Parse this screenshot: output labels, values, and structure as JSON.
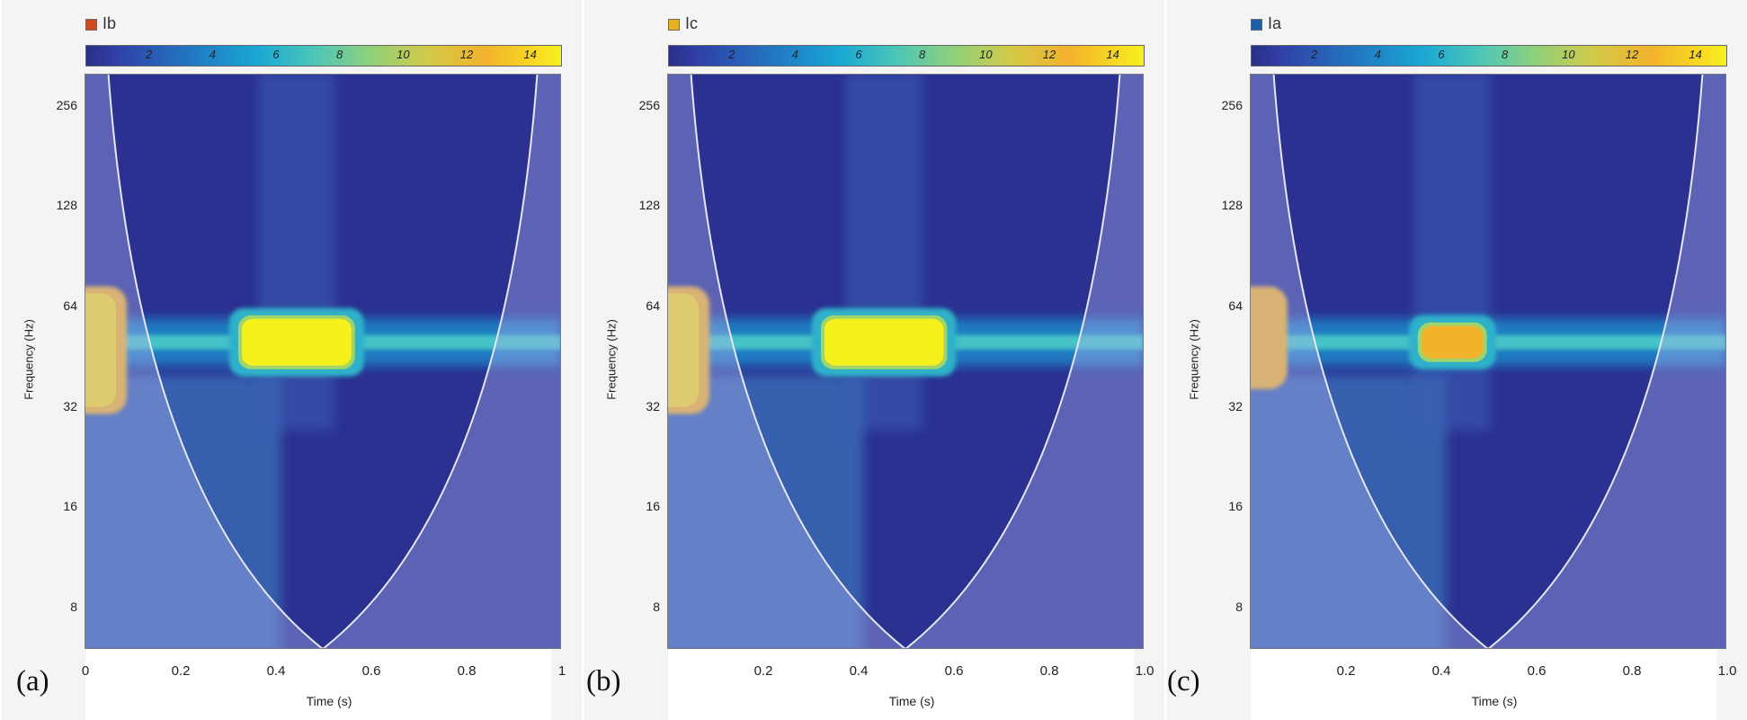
{
  "chart_data": [
    {
      "type": "heatmap",
      "panel_letter": "(a)",
      "legend": {
        "label": "Ib",
        "color": "#cc4a22"
      },
      "colorbar": {
        "range": [
          0,
          15
        ],
        "ticks": [
          "2",
          "4",
          "6",
          "8",
          "10",
          "12",
          "14"
        ]
      },
      "ylabel": "Frequency (Hz)",
      "yticks": [
        "256",
        "128",
        "64",
        "32",
        "16",
        "8"
      ],
      "xlabel": "Time (s)",
      "xticks": [
        "0",
        "0.2",
        "0.4",
        "0.6",
        "0.8",
        "1"
      ],
      "xlim": [
        0,
        1
      ],
      "ylim_hz": [
        6,
        320
      ],
      "dominant_band_hz": 50,
      "hotspot": {
        "t_start": 0.33,
        "t_end": 0.56,
        "peak_magnitude": 15
      },
      "edge_hotspot": {
        "t_end": 0.07,
        "f_low_hz": 32,
        "f_high_hz": 70,
        "magnitude": 12
      },
      "cone_of_influence": "parabolic, vertex at t=0.5"
    },
    {
      "type": "heatmap",
      "panel_letter": "(b)",
      "legend": {
        "label": "Ic",
        "color": "#e8b21e"
      },
      "colorbar": {
        "range": [
          0,
          15
        ],
        "ticks": [
          "2",
          "4",
          "6",
          "8",
          "10",
          "12",
          "14"
        ]
      },
      "ylabel": "Frequency (Hz)",
      "yticks": [
        "256",
        "128",
        "64",
        "32",
        "16",
        "8"
      ],
      "xlabel": "Time (s)",
      "xticks": [
        "0.2",
        "0.4",
        "0.6",
        "0.8",
        "1.0"
      ],
      "xlim": [
        0,
        1
      ],
      "ylim_hz": [
        6,
        320
      ],
      "dominant_band_hz": 50,
      "hotspot": {
        "t_start": 0.33,
        "t_end": 0.58,
        "peak_magnitude": 15
      },
      "edge_hotspot": {
        "t_end": 0.07,
        "f_low_hz": 32,
        "f_high_hz": 70,
        "magnitude": 12
      },
      "cone_of_influence": "parabolic, vertex at t=0.5"
    },
    {
      "type": "heatmap",
      "panel_letter": "(c)",
      "legend": {
        "label": "Ia",
        "color": "#1f5fa8"
      },
      "colorbar": {
        "range": [
          0,
          15
        ],
        "ticks": [
          "2",
          "4",
          "6",
          "8",
          "10",
          "12",
          "14"
        ]
      },
      "ylabel": "Frequency (Hz)",
      "yticks": [
        "256",
        "128",
        "64",
        "32",
        "16",
        "8"
      ],
      "xlabel": "Time (s)",
      "xticks": [
        "0.2",
        "0.4",
        "0.6",
        "0.8",
        "1.0"
      ],
      "xlim": [
        0,
        1
      ],
      "ylim_hz": [
        6,
        320
      ],
      "dominant_band_hz": 50,
      "hotspot": {
        "t_start": 0.36,
        "t_end": 0.49,
        "peak_magnitude": 13
      },
      "edge_hotspot": {
        "t_end": 0.06,
        "f_low_hz": 38,
        "f_high_hz": 70,
        "magnitude": 11
      },
      "cone_of_influence": "parabolic, vertex at t=0.5"
    }
  ]
}
